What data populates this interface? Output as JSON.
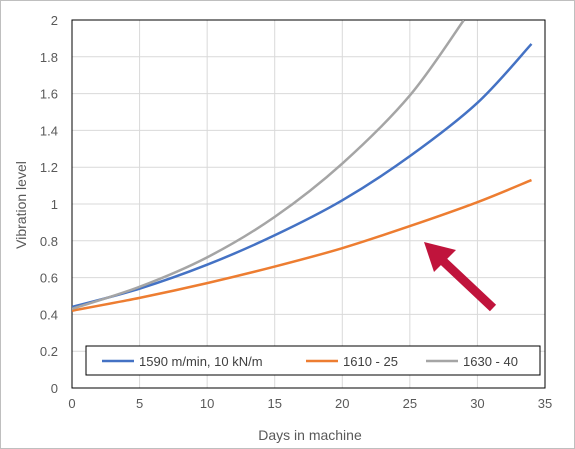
{
  "chart_data": {
    "type": "line",
    "xlabel": "Days in machine",
    "ylabel": "Vibration level",
    "xlim": [
      0,
      35
    ],
    "ylim": [
      0,
      2
    ],
    "xticks": [
      "0",
      "5",
      "10",
      "15",
      "20",
      "25",
      "30",
      "35"
    ],
    "yticks": [
      "0",
      "0.2",
      "0.4",
      "0.6",
      "0.8",
      "1",
      "1.2",
      "1.4",
      "1.6",
      "1.8",
      "2"
    ],
    "grid": true,
    "legend_position": "bottom-inside",
    "series": [
      {
        "name": "1590 m/min, 10 kN/m",
        "color": "#4472C4",
        "x": [
          0,
          5,
          10,
          15,
          20,
          25,
          30,
          34
        ],
        "y": [
          0.44,
          0.54,
          0.67,
          0.83,
          1.02,
          1.26,
          1.55,
          1.87
        ]
      },
      {
        "name": "1610 - 25",
        "color": "#ED7D31",
        "x": [
          0,
          5,
          10,
          15,
          20,
          25,
          30,
          34
        ],
        "y": [
          0.42,
          0.49,
          0.57,
          0.66,
          0.76,
          0.88,
          1.01,
          1.13
        ]
      },
      {
        "name": "1630 - 40",
        "color": "#A5A5A5",
        "x": [
          0,
          5,
          10,
          15,
          20,
          25,
          29
        ],
        "y": [
          0.43,
          0.55,
          0.71,
          0.93,
          1.22,
          1.59,
          2.0
        ]
      }
    ],
    "annotation": {
      "type": "arrow",
      "color": "#C0143C"
    }
  }
}
